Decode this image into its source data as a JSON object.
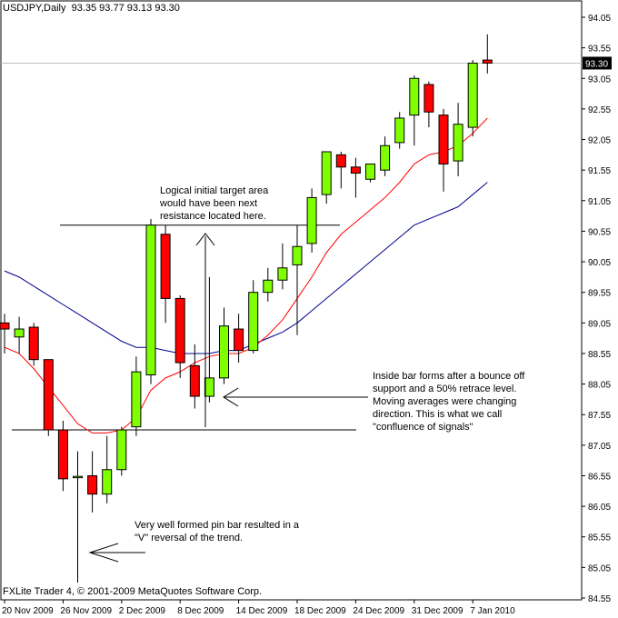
{
  "chart_data": {
    "type": "candlestick",
    "symbol_line": "USDJPY,Daily  93.35 93.77 93.13 93.30",
    "footer": "FXLite Trader 4, © 2001-2009 MetaQuotes Software Corp.",
    "current_price_label": "93.30",
    "current_price": 93.3,
    "ylim": [
      84.45,
      94.15
    ],
    "y_ticks": [
      "94.05",
      "93.55",
      "93.05",
      "92.55",
      "92.05",
      "91.55",
      "91.05",
      "90.55",
      "90.05",
      "89.55",
      "89.05",
      "88.55",
      "88.05",
      "87.55",
      "87.05",
      "86.55",
      "86.05",
      "85.55",
      "85.05",
      "84.55"
    ],
    "x_ticks": [
      "20 Nov 2009",
      "26 Nov 2009",
      "2 Dec 2009",
      "8 Dec 2009",
      "14 Dec 2009",
      "18 Dec 2009",
      "24 Dec 2009",
      "31 Dec 2009",
      "7 Jan 2010"
    ],
    "candles": [
      {
        "o": 89.05,
        "h": 89.2,
        "l": 88.55,
        "c": 88.95
      },
      {
        "o": 88.82,
        "h": 89.15,
        "l": 88.55,
        "c": 88.95
      },
      {
        "o": 88.98,
        "h": 89.05,
        "l": 88.35,
        "c": 88.45
      },
      {
        "o": 88.45,
        "h": 88.45,
        "l": 87.2,
        "c": 87.3
      },
      {
        "o": 87.3,
        "h": 87.45,
        "l": 86.3,
        "c": 86.5
      },
      {
        "o": 86.52,
        "h": 86.95,
        "l": 84.8,
        "c": 86.54
      },
      {
        "o": 86.55,
        "h": 86.95,
        "l": 85.95,
        "c": 86.25
      },
      {
        "o": 86.25,
        "h": 87.2,
        "l": 86.1,
        "c": 86.65
      },
      {
        "o": 86.65,
        "h": 87.35,
        "l": 86.55,
        "c": 87.3
      },
      {
        "o": 87.35,
        "h": 88.5,
        "l": 87.2,
        "c": 88.25
      },
      {
        "o": 88.2,
        "h": 90.75,
        "l": 88.05,
        "c": 90.65
      },
      {
        "o": 90.5,
        "h": 90.65,
        "l": 89.05,
        "c": 89.45
      },
      {
        "o": 89.45,
        "h": 89.5,
        "l": 88.15,
        "c": 88.4
      },
      {
        "o": 88.35,
        "h": 88.7,
        "l": 87.65,
        "c": 87.85
      },
      {
        "o": 87.85,
        "h": 89.8,
        "l": 87.75,
        "c": 88.15
      },
      {
        "o": 88.15,
        "h": 89.3,
        "l": 88.05,
        "c": 89.0
      },
      {
        "o": 88.95,
        "h": 89.2,
        "l": 88.4,
        "c": 88.6
      },
      {
        "o": 88.6,
        "h": 89.75,
        "l": 88.55,
        "c": 89.55
      },
      {
        "o": 89.55,
        "h": 89.95,
        "l": 89.4,
        "c": 89.75
      },
      {
        "o": 89.75,
        "h": 90.35,
        "l": 89.6,
        "c": 89.95
      },
      {
        "o": 90.0,
        "h": 90.65,
        "l": 88.85,
        "c": 90.3
      },
      {
        "o": 90.35,
        "h": 91.25,
        "l": 90.2,
        "c": 91.1
      },
      {
        "o": 91.15,
        "h": 91.85,
        "l": 91.0,
        "c": 91.85
      },
      {
        "o": 91.8,
        "h": 91.85,
        "l": 91.25,
        "c": 91.6
      },
      {
        "o": 91.6,
        "h": 91.75,
        "l": 91.1,
        "c": 91.5
      },
      {
        "o": 91.4,
        "h": 91.65,
        "l": 91.35,
        "c": 91.65
      },
      {
        "o": 91.55,
        "h": 92.1,
        "l": 91.45,
        "c": 91.95
      },
      {
        "o": 92.0,
        "h": 92.5,
        "l": 91.9,
        "c": 92.4
      },
      {
        "o": 92.45,
        "h": 93.1,
        "l": 91.95,
        "c": 93.05
      },
      {
        "o": 92.95,
        "h": 93.0,
        "l": 92.25,
        "c": 92.5
      },
      {
        "o": 92.45,
        "h": 92.55,
        "l": 91.2,
        "c": 91.65
      },
      {
        "o": 91.7,
        "h": 92.65,
        "l": 91.45,
        "c": 92.3
      },
      {
        "o": 92.25,
        "h": 93.35,
        "l": 92.1,
        "c": 93.3
      },
      {
        "o": 93.35,
        "h": 93.77,
        "l": 93.13,
        "c": 93.3
      }
    ],
    "ma_fast": [
      88.65,
      88.55,
      88.3,
      88.0,
      87.7,
      87.4,
      87.25,
      87.25,
      87.3,
      87.5,
      87.95,
      88.15,
      88.25,
      88.4,
      88.5,
      88.55,
      88.55,
      88.65,
      88.85,
      89.1,
      89.45,
      89.8,
      90.2,
      90.5,
      90.7,
      90.9,
      91.1,
      91.35,
      91.65,
      91.8,
      91.85,
      91.95,
      92.15,
      92.4
    ],
    "ma_slow": [
      89.9,
      89.8,
      89.65,
      89.5,
      89.35,
      89.2,
      89.05,
      88.9,
      88.75,
      88.65,
      88.65,
      88.6,
      88.55,
      88.55,
      88.55,
      88.6,
      88.6,
      88.7,
      88.8,
      88.9,
      89.05,
      89.25,
      89.45,
      89.65,
      89.85,
      90.05,
      90.25,
      90.45,
      90.65,
      90.75,
      90.85,
      90.95,
      91.15,
      91.35
    ],
    "resistance_level": 90.65,
    "support_level": 87.3,
    "annotations": {
      "target": "Logical initial target area\nwould have been next\nresistance located here.",
      "inside_bar": "Inside bar forms after a bounce off\nsupport and a 50% retrace level.\nMoving averages were changing\ndirection. This is what we call\n\"confluence of signals\"",
      "pin_bar": "Very well formed pin bar resulted in a\n\"V\" reversal of the trend."
    },
    "colors": {
      "bull": "#7FFF00",
      "bear": "#FF0000",
      "ma_fast": "#FF0000",
      "ma_slow": "#00008B",
      "outline": "#000000"
    }
  }
}
